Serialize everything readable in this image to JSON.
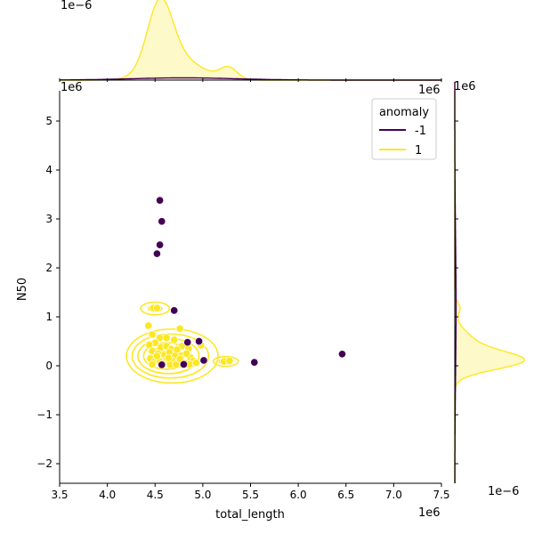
{
  "chart_data": {
    "type": "scatter",
    "subtype": "jointplot with KDE contours and marginal KDEs, hue by anomaly",
    "xlabel": "total_length",
    "ylabel": "N50",
    "x_offset_label": "1e6",
    "y_offset_label": "1e6",
    "top_marginal_offset_label": "1e−6",
    "right_marginal_offset_label": "1e−6",
    "xlim": [
      3.5,
      7.5
    ],
    "ylim": [
      -2.4,
      5.8
    ],
    "xticks": [
      3.5,
      4.0,
      4.5,
      5.0,
      5.5,
      6.0,
      6.5,
      7.0,
      7.5
    ],
    "yticks": [
      -2,
      -1,
      0,
      1,
      2,
      3,
      4,
      5
    ],
    "xtick_labels": [
      "3.5",
      "4.0",
      "4.5",
      "5.0",
      "5.5",
      "6.0",
      "6.5",
      "7.0",
      "7.5"
    ],
    "ytick_labels": [
      "−2",
      "−1",
      "0",
      "1",
      "2",
      "3",
      "4",
      "5"
    ],
    "grid": false,
    "legend": {
      "title": "anomaly",
      "placement": "top-right",
      "entries": [
        {
          "label": "-1",
          "color": "#440154"
        },
        {
          "label": "1",
          "color": "#fde725"
        }
      ]
    },
    "colors": {
      "anomaly_-1": "#440154",
      "anomaly_1": "#fde725",
      "edge": "#ffffff"
    },
    "series": [
      {
        "name": "-1",
        "color": "#440154",
        "points": [
          [
            4.55,
            3.38
          ],
          [
            4.57,
            2.95
          ],
          [
            4.55,
            2.47
          ],
          [
            4.52,
            2.29
          ],
          [
            4.7,
            1.13
          ],
          [
            4.84,
            0.48
          ],
          [
            4.96,
            0.5
          ],
          [
            5.01,
            0.11
          ],
          [
            4.8,
            0.03
          ],
          [
            4.57,
            0.02
          ],
          [
            5.54,
            0.07
          ],
          [
            6.46,
            0.24
          ]
        ]
      },
      {
        "name": "1",
        "color": "#fde725",
        "points": [
          [
            4.48,
            1.18
          ],
          [
            4.52,
            1.18
          ],
          [
            4.43,
            0.82
          ],
          [
            4.47,
            0.64
          ],
          [
            4.55,
            0.57
          ],
          [
            4.62,
            0.57
          ],
          [
            4.7,
            0.53
          ],
          [
            4.76,
            0.76
          ],
          [
            4.78,
            0.4
          ],
          [
            4.85,
            0.35
          ],
          [
            4.98,
            0.42
          ],
          [
            4.87,
            0.17
          ],
          [
            4.5,
            0.47
          ],
          [
            4.44,
            0.43
          ],
          [
            4.56,
            0.38
          ],
          [
            4.62,
            0.4
          ],
          [
            4.67,
            0.34
          ],
          [
            4.73,
            0.33
          ],
          [
            4.47,
            0.3
          ],
          [
            4.53,
            0.25
          ],
          [
            4.6,
            0.22
          ],
          [
            4.65,
            0.27
          ],
          [
            4.71,
            0.2
          ],
          [
            4.78,
            0.21
          ],
          [
            4.83,
            0.25
          ],
          [
            4.9,
            0.1
          ],
          [
            4.45,
            0.15
          ],
          [
            4.5,
            0.1
          ],
          [
            4.55,
            0.09
          ],
          [
            4.62,
            0.12
          ],
          [
            4.68,
            0.1
          ],
          [
            4.74,
            0.06
          ],
          [
            4.82,
            0.05
          ],
          [
            4.47,
            0.03
          ],
          [
            4.58,
            0.04
          ],
          [
            4.66,
            0.02
          ],
          [
            4.72,
            0.03
          ],
          [
            4.86,
            0.03
          ],
          [
            4.93,
            0.06
          ],
          [
            5.22,
            0.09
          ],
          [
            5.28,
            0.1
          ],
          [
            4.52,
            0.2
          ],
          [
            4.64,
            0.16
          ],
          [
            4.76,
            0.14
          ]
        ]
      }
    ],
    "kde_contours_anomaly_1": [
      {
        "cx": 4.68,
        "cy": 0.2,
        "rx": 0.48,
        "ry": 0.55
      },
      {
        "cx": 4.66,
        "cy": 0.2,
        "rx": 0.4,
        "ry": 0.45
      },
      {
        "cx": 4.64,
        "cy": 0.2,
        "rx": 0.32,
        "ry": 0.36
      },
      {
        "cx": 4.62,
        "cy": 0.2,
        "rx": 0.24,
        "ry": 0.27
      },
      {
        "cx": 4.6,
        "cy": 0.2,
        "rx": 0.16,
        "ry": 0.18
      },
      {
        "cx": 4.6,
        "cy": 0.2,
        "rx": 0.09,
        "ry": 0.1
      },
      {
        "cx": 4.5,
        "cy": 1.17,
        "rx": 0.15,
        "ry": 0.13
      },
      {
        "cx": 4.5,
        "cy": 1.17,
        "rx": 0.07,
        "ry": 0.06
      },
      {
        "cx": 5.24,
        "cy": 0.09,
        "rx": 0.13,
        "ry": 0.1
      },
      {
        "cx": 5.24,
        "cy": 0.09,
        "rx": 0.07,
        "ry": 0.05
      }
    ],
    "marginal_x_density_peaks": [
      {
        "x": 4.55,
        "height": 1.0,
        "width": 0.13
      },
      {
        "x": 4.72,
        "height": 0.35,
        "width": 0.25
      },
      {
        "x": 5.27,
        "height": 0.18,
        "width": 0.09
      }
    ],
    "marginal_y_density_peaks": [
      {
        "y": 0.1,
        "height": 1.0,
        "width": 0.18
      },
      {
        "y": 0.45,
        "height": 0.3,
        "width": 0.25
      },
      {
        "y": 1.18,
        "height": 0.08,
        "width": 0.12
      }
    ]
  }
}
